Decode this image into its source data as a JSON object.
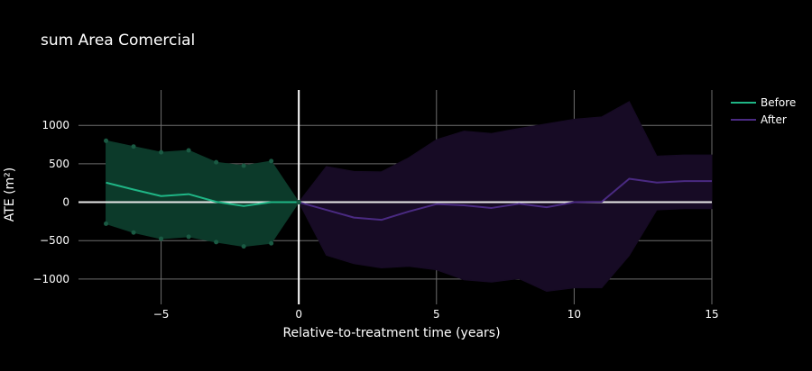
{
  "chart_data": {
    "type": "line",
    "title": "sum Area Comercial",
    "xlabel": "Relative-to-treatment time (years)",
    "ylabel": "ATE (m²)",
    "xlim": [
      -8,
      15
    ],
    "ylim": [
      -1330,
      1460
    ],
    "xticks": [
      -5,
      0,
      5,
      10,
      15
    ],
    "xtick_labels": [
      "−5",
      "0",
      "5",
      "10",
      "15"
    ],
    "yticks": [
      -1000,
      -500,
      0,
      500,
      1000
    ],
    "ytick_labels": [
      "−1000",
      "−500",
      "0",
      "500",
      "1000"
    ],
    "grid": true,
    "legend": "top-right",
    "treatment_line_x": 0,
    "series": [
      {
        "name": "Before",
        "color": "#1fb585",
        "fill_color": "#0c3a2a",
        "markers": true,
        "x": [
          -7,
          -6,
          -5,
          -4,
          -3,
          -2,
          -1,
          0
        ],
        "y": [
          255,
          165,
          80,
          105,
          5,
          -50,
          0,
          0
        ],
        "upper": [
          800,
          725,
          650,
          675,
          520,
          475,
          535,
          0
        ],
        "lower": [
          -280,
          -395,
          -475,
          -450,
          -520,
          -575,
          -535,
          0
        ]
      },
      {
        "name": "After",
        "color": "#4a2a82",
        "fill_color": "#170b25",
        "markers": false,
        "x": [
          0,
          1,
          2,
          3,
          4,
          5,
          6,
          7,
          8,
          9,
          10,
          11,
          12,
          13,
          14,
          15
        ],
        "y": [
          0,
          -100,
          -200,
          -230,
          -120,
          -25,
          -40,
          -75,
          -20,
          -65,
          0,
          5,
          305,
          255,
          275,
          275
        ],
        "upper": [
          0,
          465,
          400,
          395,
          580,
          815,
          925,
          895,
          960,
          1020,
          1080,
          1110,
          1310,
          600,
          615,
          615
        ],
        "lower": [
          0,
          -690,
          -800,
          -855,
          -835,
          -880,
          -1010,
          -1040,
          -995,
          -1160,
          -1115,
          -1115,
          -695,
          -100,
          -85,
          -85
        ]
      }
    ]
  }
}
